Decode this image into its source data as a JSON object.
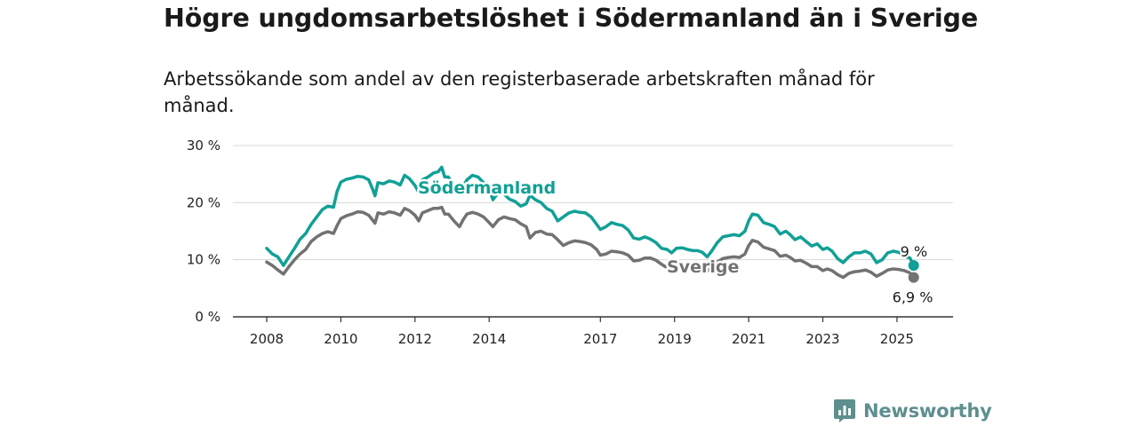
{
  "title": "Högre ungdomsarbetslöshet i Södermanland än i Sverige",
  "subtitle": "Arbetssökande som andel av den registerbaserade arbetskraften månad för månad.",
  "brand": {
    "name": "Newsworthy"
  },
  "icons": {
    "brand_logo": "bar-chart-speech-bubble-icon"
  },
  "colors": {
    "sodermanland": "#11a096",
    "sverige": "#727272",
    "grid": "#d8d8d8",
    "brand": "#5e8f8f"
  },
  "chart_data": {
    "type": "line",
    "ylim": [
      0,
      30
    ],
    "y_ticks": [
      0,
      10,
      20,
      30
    ],
    "y_tick_labels": [
      "0 %",
      "10 %",
      "20 %",
      "30 %"
    ],
    "x_range": [
      2007.6,
      2026.4
    ],
    "x_ticks": [
      2008,
      2010,
      2012,
      2014,
      2017,
      2019,
      2021,
      2023,
      2025
    ],
    "x_tick_labels": [
      "2008",
      "2010",
      "2012",
      "2014",
      "2017",
      "2019",
      "2021",
      "2023",
      "2025"
    ],
    "grid": true,
    "series": [
      {
        "name": "Södermanland",
        "end_label": "9 %",
        "points": [
          [
            2008.0,
            12.0
          ],
          [
            2008.15,
            11.0
          ],
          [
            2008.3,
            10.5
          ],
          [
            2008.45,
            9.0
          ],
          [
            2008.6,
            10.5
          ],
          [
            2008.75,
            12.0
          ],
          [
            2008.9,
            13.6
          ],
          [
            2009.05,
            14.6
          ],
          [
            2009.2,
            16.2
          ],
          [
            2009.35,
            17.5
          ],
          [
            2009.5,
            18.8
          ],
          [
            2009.65,
            19.4
          ],
          [
            2009.8,
            19.2
          ],
          [
            2009.9,
            22.0
          ],
          [
            2010.0,
            23.6
          ],
          [
            2010.15,
            24.1
          ],
          [
            2010.3,
            24.3
          ],
          [
            2010.45,
            24.6
          ],
          [
            2010.6,
            24.5
          ],
          [
            2010.75,
            24.0
          ],
          [
            2010.85,
            22.5
          ],
          [
            2010.92,
            21.2
          ],
          [
            2011.0,
            23.5
          ],
          [
            2011.15,
            23.3
          ],
          [
            2011.3,
            23.8
          ],
          [
            2011.45,
            23.6
          ],
          [
            2011.6,
            23.1
          ],
          [
            2011.72,
            24.8
          ],
          [
            2011.85,
            24.2
          ],
          [
            2012.0,
            23.0
          ],
          [
            2012.1,
            21.8
          ],
          [
            2012.2,
            24.0
          ],
          [
            2012.35,
            24.5
          ],
          [
            2012.5,
            25.2
          ],
          [
            2012.62,
            25.4
          ],
          [
            2012.72,
            26.2
          ],
          [
            2012.8,
            24.5
          ],
          [
            2012.9,
            24.5
          ],
          [
            2013.05,
            23.0
          ],
          [
            2013.2,
            21.8
          ],
          [
            2013.3,
            22.8
          ],
          [
            2013.4,
            24.0
          ],
          [
            2013.55,
            24.8
          ],
          [
            2013.7,
            24.5
          ],
          [
            2013.85,
            23.5
          ],
          [
            2014.0,
            22.4
          ],
          [
            2014.1,
            20.5
          ],
          [
            2014.25,
            21.8
          ],
          [
            2014.4,
            21.5
          ],
          [
            2014.55,
            20.6
          ],
          [
            2014.7,
            20.2
          ],
          [
            2014.85,
            19.4
          ],
          [
            2015.0,
            19.8
          ],
          [
            2015.1,
            21.3
          ],
          [
            2015.25,
            20.5
          ],
          [
            2015.4,
            20.0
          ],
          [
            2015.55,
            19.0
          ],
          [
            2015.7,
            18.5
          ],
          [
            2015.85,
            16.8
          ],
          [
            2016.0,
            17.5
          ],
          [
            2016.15,
            18.2
          ],
          [
            2016.3,
            18.5
          ],
          [
            2016.45,
            18.3
          ],
          [
            2016.6,
            18.2
          ],
          [
            2016.75,
            17.5
          ],
          [
            2016.9,
            16.2
          ],
          [
            2017.0,
            15.3
          ],
          [
            2017.15,
            15.8
          ],
          [
            2017.3,
            16.5
          ],
          [
            2017.45,
            16.2
          ],
          [
            2017.6,
            16.0
          ],
          [
            2017.75,
            15.2
          ],
          [
            2017.9,
            13.8
          ],
          [
            2018.05,
            13.6
          ],
          [
            2018.2,
            14.0
          ],
          [
            2018.35,
            13.6
          ],
          [
            2018.5,
            13.0
          ],
          [
            2018.65,
            12.0
          ],
          [
            2018.8,
            11.8
          ],
          [
            2018.92,
            11.2
          ],
          [
            2019.05,
            12.0
          ],
          [
            2019.2,
            12.1
          ],
          [
            2019.35,
            11.8
          ],
          [
            2019.5,
            11.6
          ],
          [
            2019.62,
            11.6
          ],
          [
            2019.75,
            11.3
          ],
          [
            2019.88,
            10.5
          ],
          [
            2020.0,
            11.5
          ],
          [
            2020.15,
            13.0
          ],
          [
            2020.3,
            14.0
          ],
          [
            2020.45,
            14.2
          ],
          [
            2020.6,
            14.4
          ],
          [
            2020.75,
            14.2
          ],
          [
            2020.9,
            15.0
          ],
          [
            2021.0,
            16.8
          ],
          [
            2021.1,
            18.0
          ],
          [
            2021.25,
            17.8
          ],
          [
            2021.4,
            16.5
          ],
          [
            2021.55,
            16.2
          ],
          [
            2021.7,
            15.8
          ],
          [
            2021.85,
            14.5
          ],
          [
            2022.0,
            15.0
          ],
          [
            2022.12,
            14.4
          ],
          [
            2022.25,
            13.5
          ],
          [
            2022.4,
            14.0
          ],
          [
            2022.55,
            13.2
          ],
          [
            2022.7,
            12.4
          ],
          [
            2022.85,
            12.8
          ],
          [
            2023.0,
            11.8
          ],
          [
            2023.12,
            12.1
          ],
          [
            2023.25,
            11.5
          ],
          [
            2023.4,
            10.2
          ],
          [
            2023.55,
            9.5
          ],
          [
            2023.7,
            10.5
          ],
          [
            2023.85,
            11.2
          ],
          [
            2024.0,
            11.2
          ],
          [
            2024.15,
            11.5
          ],
          [
            2024.3,
            11.0
          ],
          [
            2024.45,
            9.5
          ],
          [
            2024.6,
            10.0
          ],
          [
            2024.75,
            11.2
          ],
          [
            2024.9,
            11.5
          ],
          [
            2025.05,
            11.3
          ],
          [
            2025.2,
            10.6
          ],
          [
            2025.35,
            10.3
          ],
          [
            2025.45,
            9.0
          ]
        ]
      },
      {
        "name": "Sverige",
        "end_label": "6,9 %",
        "points": [
          [
            2008.0,
            9.6
          ],
          [
            2008.15,
            9.0
          ],
          [
            2008.3,
            8.2
          ],
          [
            2008.45,
            7.5
          ],
          [
            2008.6,
            8.8
          ],
          [
            2008.75,
            10.0
          ],
          [
            2008.9,
            11.0
          ],
          [
            2009.05,
            11.8
          ],
          [
            2009.2,
            13.2
          ],
          [
            2009.35,
            14.0
          ],
          [
            2009.5,
            14.6
          ],
          [
            2009.65,
            14.9
          ],
          [
            2009.8,
            14.6
          ],
          [
            2009.9,
            16.0
          ],
          [
            2010.0,
            17.2
          ],
          [
            2010.15,
            17.7
          ],
          [
            2010.3,
            18.0
          ],
          [
            2010.45,
            18.4
          ],
          [
            2010.6,
            18.3
          ],
          [
            2010.75,
            17.8
          ],
          [
            2010.85,
            17.0
          ],
          [
            2010.92,
            16.4
          ],
          [
            2011.0,
            18.2
          ],
          [
            2011.15,
            18.0
          ],
          [
            2011.3,
            18.4
          ],
          [
            2011.45,
            18.2
          ],
          [
            2011.6,
            17.8
          ],
          [
            2011.72,
            19.0
          ],
          [
            2011.85,
            18.6
          ],
          [
            2012.0,
            17.8
          ],
          [
            2012.1,
            16.8
          ],
          [
            2012.2,
            18.2
          ],
          [
            2012.35,
            18.6
          ],
          [
            2012.5,
            19.0
          ],
          [
            2012.62,
            19.0
          ],
          [
            2012.72,
            19.2
          ],
          [
            2012.8,
            18.0
          ],
          [
            2012.9,
            18.0
          ],
          [
            2013.05,
            16.8
          ],
          [
            2013.2,
            15.8
          ],
          [
            2013.3,
            17.0
          ],
          [
            2013.4,
            18.0
          ],
          [
            2013.55,
            18.3
          ],
          [
            2013.7,
            18.0
          ],
          [
            2013.85,
            17.5
          ],
          [
            2014.0,
            16.5
          ],
          [
            2014.1,
            15.8
          ],
          [
            2014.25,
            17.0
          ],
          [
            2014.4,
            17.5
          ],
          [
            2014.55,
            17.2
          ],
          [
            2014.7,
            17.0
          ],
          [
            2014.85,
            16.3
          ],
          [
            2015.0,
            15.8
          ],
          [
            2015.1,
            13.8
          ],
          [
            2015.25,
            14.8
          ],
          [
            2015.4,
            15.0
          ],
          [
            2015.55,
            14.5
          ],
          [
            2015.7,
            14.4
          ],
          [
            2015.85,
            13.5
          ],
          [
            2016.0,
            12.5
          ],
          [
            2016.15,
            13.0
          ],
          [
            2016.3,
            13.3
          ],
          [
            2016.45,
            13.2
          ],
          [
            2016.6,
            13.0
          ],
          [
            2016.75,
            12.6
          ],
          [
            2016.9,
            11.8
          ],
          [
            2017.0,
            10.8
          ],
          [
            2017.15,
            11.0
          ],
          [
            2017.3,
            11.5
          ],
          [
            2017.45,
            11.4
          ],
          [
            2017.6,
            11.2
          ],
          [
            2017.75,
            10.8
          ],
          [
            2017.9,
            9.8
          ],
          [
            2018.05,
            9.9
          ],
          [
            2018.2,
            10.3
          ],
          [
            2018.35,
            10.3
          ],
          [
            2018.5,
            9.9
          ],
          [
            2018.65,
            9.2
          ],
          [
            2018.8,
            8.6
          ],
          [
            2018.92,
            8.2
          ],
          [
            2019.05,
            9.0
          ],
          [
            2019.2,
            9.1
          ],
          [
            2019.35,
            9.0
          ],
          [
            2019.5,
            8.9
          ],
          [
            2019.62,
            8.8
          ],
          [
            2019.75,
            8.5
          ],
          [
            2019.88,
            8.0
          ],
          [
            2020.0,
            8.6
          ],
          [
            2020.15,
            9.6
          ],
          [
            2020.3,
            10.2
          ],
          [
            2020.45,
            10.4
          ],
          [
            2020.6,
            10.5
          ],
          [
            2020.75,
            10.4
          ],
          [
            2020.9,
            11.0
          ],
          [
            2021.0,
            12.5
          ],
          [
            2021.1,
            13.4
          ],
          [
            2021.25,
            13.1
          ],
          [
            2021.4,
            12.2
          ],
          [
            2021.55,
            11.9
          ],
          [
            2021.7,
            11.6
          ],
          [
            2021.85,
            10.6
          ],
          [
            2022.0,
            10.8
          ],
          [
            2022.12,
            10.4
          ],
          [
            2022.25,
            9.8
          ],
          [
            2022.4,
            9.9
          ],
          [
            2022.55,
            9.4
          ],
          [
            2022.7,
            8.8
          ],
          [
            2022.85,
            8.8
          ],
          [
            2023.0,
            8.1
          ],
          [
            2023.12,
            8.4
          ],
          [
            2023.25,
            8.1
          ],
          [
            2023.4,
            7.4
          ],
          [
            2023.55,
            6.9
          ],
          [
            2023.7,
            7.6
          ],
          [
            2023.85,
            7.9
          ],
          [
            2024.0,
            8.0
          ],
          [
            2024.15,
            8.2
          ],
          [
            2024.3,
            7.8
          ],
          [
            2024.45,
            7.1
          ],
          [
            2024.6,
            7.6
          ],
          [
            2024.75,
            8.2
          ],
          [
            2024.9,
            8.4
          ],
          [
            2025.05,
            8.3
          ],
          [
            2025.2,
            8.1
          ],
          [
            2025.35,
            7.7
          ],
          [
            2025.45,
            6.9
          ]
        ]
      }
    ]
  }
}
